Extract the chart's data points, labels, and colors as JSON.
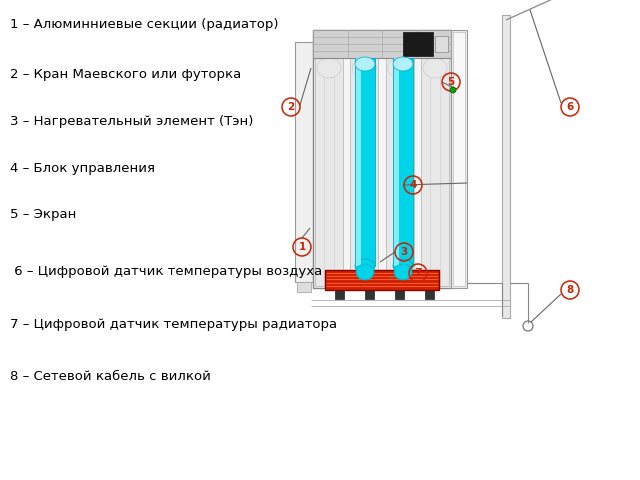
{
  "labels": [
    "1 – Алюминниевые секции (радиатор)",
    "2 – Кран Маевского или футорка",
    "3 – Нагревательный элемент (Тэн)",
    "4 – Блок управления",
    "5 – Экран",
    " 6 – Цифровой датчик температуры воздуха",
    "7 – Цифровой датчик температуры радиатора",
    "8 – Сетевой кабель с вилкой"
  ],
  "background_color": "#ffffff",
  "label_color": "#000000",
  "circle_edge": "#cc2200",
  "circle_text": "#cc2200",
  "cyan_color": "#00d4e8",
  "cyan_light": "#80eeff",
  "red_block": "#cc2200",
  "red_stripe": "#ff6644",
  "gray_col": "#e8e8e8",
  "gray_col_edge": "#aaaaaa",
  "gray_top": "#cccccc",
  "gray_top_edge": "#888888",
  "dark_blk": "#222222",
  "panel_fill": "#eeeeee",
  "panel_edge": "#999999",
  "wall_fill": "#e8e8e8",
  "wall_edge": "#aaaaaa",
  "line_col": "#666666",
  "green_dot": "#00aa00",
  "label_fontsize": 9.5
}
